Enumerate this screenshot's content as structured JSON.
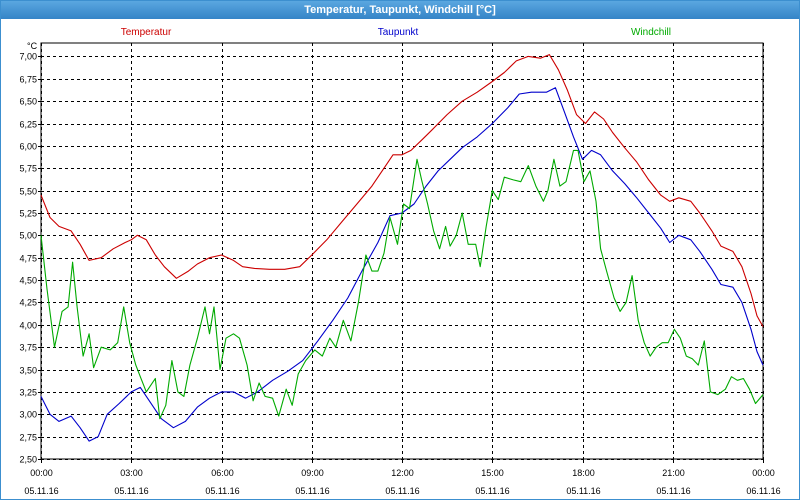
{
  "window": {
    "title": "Temperatur, Taupunkt, Windchill [°C]"
  },
  "chart_data": {
    "type": "line",
    "title": "Temperatur, Taupunkt, Windchill [°C]",
    "ylabel": "°C",
    "ylim": [
      2.5,
      7.15
    ],
    "xlim": [
      0,
      24
    ],
    "grid": true,
    "legend": "top",
    "y_ticks": [
      "2,50",
      "2,75",
      "3,00",
      "3,25",
      "3,50",
      "3,75",
      "4,00",
      "4,25",
      "4,50",
      "4,75",
      "5,00",
      "5,25",
      "5,50",
      "5,75",
      "6,00",
      "6,25",
      "6,50",
      "6,75",
      "7,00"
    ],
    "x_ticks": [
      {
        "time": "00:00",
        "date": "05.11.16",
        "pos": 0
      },
      {
        "time": "03:00",
        "date": "05.11.16",
        "pos": 3
      },
      {
        "time": "06:00",
        "date": "05.11.16",
        "pos": 6
      },
      {
        "time": "09:00",
        "date": "05.11.16",
        "pos": 9
      },
      {
        "time": "12:00",
        "date": "05.11.16",
        "pos": 12
      },
      {
        "time": "15:00",
        "date": "05.11.16",
        "pos": 15
      },
      {
        "time": "18:00",
        "date": "05.11.16",
        "pos": 18
      },
      {
        "time": "21:00",
        "date": "05.11.16",
        "pos": 21
      },
      {
        "time": "00:00",
        "date": "06.11.16",
        "pos": 24
      }
    ],
    "series": [
      {
        "name": "Temperatur",
        "color": "#cc0000",
        "points": [
          [
            0,
            5.45
          ],
          [
            0.3,
            5.2
          ],
          [
            0.6,
            5.1
          ],
          [
            1.0,
            5.05
          ],
          [
            1.3,
            4.9
          ],
          [
            1.6,
            4.72
          ],
          [
            2.0,
            4.75
          ],
          [
            2.4,
            4.85
          ],
          [
            2.8,
            4.92
          ],
          [
            3.0,
            4.95
          ],
          [
            3.2,
            5.0
          ],
          [
            3.5,
            4.95
          ],
          [
            3.8,
            4.78
          ],
          [
            4.1,
            4.65
          ],
          [
            4.5,
            4.52
          ],
          [
            4.9,
            4.6
          ],
          [
            5.2,
            4.68
          ],
          [
            5.6,
            4.75
          ],
          [
            6.0,
            4.78
          ],
          [
            6.4,
            4.72
          ],
          [
            6.7,
            4.65
          ],
          [
            7.1,
            4.63
          ],
          [
            7.6,
            4.62
          ],
          [
            8.1,
            4.62
          ],
          [
            8.6,
            4.65
          ],
          [
            9.0,
            4.78
          ],
          [
            9.5,
            4.95
          ],
          [
            10.0,
            5.15
          ],
          [
            10.5,
            5.35
          ],
          [
            11.0,
            5.55
          ],
          [
            11.4,
            5.75
          ],
          [
            11.7,
            5.9
          ],
          [
            12.0,
            5.9
          ],
          [
            12.3,
            5.95
          ],
          [
            12.7,
            6.08
          ],
          [
            13.0,
            6.18
          ],
          [
            13.5,
            6.35
          ],
          [
            14.0,
            6.5
          ],
          [
            14.5,
            6.6
          ],
          [
            15.0,
            6.72
          ],
          [
            15.4,
            6.82
          ],
          [
            15.8,
            6.95
          ],
          [
            16.2,
            7.0
          ],
          [
            16.6,
            6.98
          ],
          [
            16.9,
            7.02
          ],
          [
            17.2,
            6.85
          ],
          [
            17.5,
            6.62
          ],
          [
            17.8,
            6.35
          ],
          [
            18.1,
            6.25
          ],
          [
            18.4,
            6.38
          ],
          [
            18.7,
            6.3
          ],
          [
            19.0,
            6.15
          ],
          [
            19.4,
            5.98
          ],
          [
            19.8,
            5.82
          ],
          [
            20.2,
            5.62
          ],
          [
            20.6,
            5.45
          ],
          [
            20.9,
            5.38
          ],
          [
            21.2,
            5.42
          ],
          [
            21.6,
            5.38
          ],
          [
            21.9,
            5.25
          ],
          [
            22.3,
            5.05
          ],
          [
            22.6,
            4.88
          ],
          [
            23.0,
            4.82
          ],
          [
            23.3,
            4.65
          ],
          [
            23.6,
            4.35
          ],
          [
            23.8,
            4.1
          ],
          [
            24.0,
            3.98
          ]
        ]
      },
      {
        "name": "Taupunkt",
        "color": "#0000cc",
        "points": [
          [
            0,
            3.2
          ],
          [
            0.3,
            3.0
          ],
          [
            0.6,
            2.92
          ],
          [
            1.0,
            2.98
          ],
          [
            1.3,
            2.85
          ],
          [
            1.6,
            2.7
          ],
          [
            1.9,
            2.75
          ],
          [
            2.2,
            3.0
          ],
          [
            2.6,
            3.12
          ],
          [
            3.0,
            3.25
          ],
          [
            3.3,
            3.3
          ],
          [
            3.6,
            3.15
          ],
          [
            4.0,
            2.95
          ],
          [
            4.4,
            2.85
          ],
          [
            4.8,
            2.92
          ],
          [
            5.2,
            3.08
          ],
          [
            5.6,
            3.18
          ],
          [
            6.0,
            3.25
          ],
          [
            6.4,
            3.25
          ],
          [
            6.8,
            3.18
          ],
          [
            7.2,
            3.25
          ],
          [
            7.7,
            3.38
          ],
          [
            8.2,
            3.48
          ],
          [
            8.7,
            3.6
          ],
          [
            9.2,
            3.82
          ],
          [
            9.7,
            4.05
          ],
          [
            10.2,
            4.3
          ],
          [
            10.7,
            4.62
          ],
          [
            11.2,
            4.92
          ],
          [
            11.6,
            5.22
          ],
          [
            12.0,
            5.25
          ],
          [
            12.4,
            5.35
          ],
          [
            12.8,
            5.55
          ],
          [
            13.2,
            5.72
          ],
          [
            13.6,
            5.85
          ],
          [
            14.0,
            5.98
          ],
          [
            14.5,
            6.1
          ],
          [
            15.0,
            6.25
          ],
          [
            15.5,
            6.42
          ],
          [
            15.9,
            6.58
          ],
          [
            16.3,
            6.6
          ],
          [
            16.8,
            6.6
          ],
          [
            17.1,
            6.65
          ],
          [
            17.4,
            6.38
          ],
          [
            17.7,
            6.1
          ],
          [
            18.0,
            5.85
          ],
          [
            18.3,
            5.95
          ],
          [
            18.6,
            5.9
          ],
          [
            19.0,
            5.72
          ],
          [
            19.4,
            5.58
          ],
          [
            19.8,
            5.42
          ],
          [
            20.2,
            5.25
          ],
          [
            20.6,
            5.08
          ],
          [
            20.9,
            4.92
          ],
          [
            21.2,
            5.0
          ],
          [
            21.6,
            4.95
          ],
          [
            21.9,
            4.82
          ],
          [
            22.3,
            4.62
          ],
          [
            22.6,
            4.45
          ],
          [
            23.0,
            4.42
          ],
          [
            23.3,
            4.25
          ],
          [
            23.6,
            3.95
          ],
          [
            23.8,
            3.7
          ],
          [
            24.0,
            3.55
          ]
        ]
      },
      {
        "name": "Windchill",
        "color": "#00aa00",
        "points": [
          [
            0,
            5.0
          ],
          [
            0.2,
            4.4
          ],
          [
            0.45,
            3.75
          ],
          [
            0.7,
            4.15
          ],
          [
            0.9,
            4.2
          ],
          [
            1.05,
            4.7
          ],
          [
            1.2,
            4.2
          ],
          [
            1.4,
            3.65
          ],
          [
            1.6,
            3.9
          ],
          [
            1.75,
            3.52
          ],
          [
            2.0,
            3.75
          ],
          [
            2.3,
            3.72
          ],
          [
            2.55,
            3.8
          ],
          [
            2.75,
            4.2
          ],
          [
            2.95,
            3.8
          ],
          [
            3.15,
            3.55
          ],
          [
            3.3,
            3.42
          ],
          [
            3.5,
            3.25
          ],
          [
            3.8,
            3.4
          ],
          [
            3.95,
            2.95
          ],
          [
            4.15,
            3.1
          ],
          [
            4.35,
            3.6
          ],
          [
            4.55,
            3.25
          ],
          [
            4.75,
            3.2
          ],
          [
            4.95,
            3.55
          ],
          [
            5.2,
            3.85
          ],
          [
            5.45,
            4.2
          ],
          [
            5.6,
            3.9
          ],
          [
            5.75,
            4.2
          ],
          [
            5.95,
            3.5
          ],
          [
            6.15,
            3.85
          ],
          [
            6.4,
            3.9
          ],
          [
            6.6,
            3.85
          ],
          [
            6.85,
            3.55
          ],
          [
            7.05,
            3.15
          ],
          [
            7.25,
            3.35
          ],
          [
            7.45,
            3.2
          ],
          [
            7.7,
            3.18
          ],
          [
            7.9,
            2.98
          ],
          [
            8.15,
            3.28
          ],
          [
            8.35,
            3.1
          ],
          [
            8.55,
            3.45
          ],
          [
            8.8,
            3.6
          ],
          [
            9.1,
            3.72
          ],
          [
            9.35,
            3.65
          ],
          [
            9.6,
            3.85
          ],
          [
            9.8,
            3.75
          ],
          [
            10.05,
            4.05
          ],
          [
            10.3,
            3.82
          ],
          [
            10.55,
            4.25
          ],
          [
            10.8,
            4.78
          ],
          [
            11.0,
            4.6
          ],
          [
            11.2,
            4.6
          ],
          [
            11.4,
            4.8
          ],
          [
            11.6,
            5.2
          ],
          [
            11.85,
            4.9
          ],
          [
            12.05,
            5.35
          ],
          [
            12.25,
            5.3
          ],
          [
            12.5,
            5.85
          ],
          [
            12.65,
            5.62
          ],
          [
            12.85,
            5.35
          ],
          [
            13.05,
            5.05
          ],
          [
            13.25,
            4.85
          ],
          [
            13.45,
            5.1
          ],
          [
            13.6,
            4.88
          ],
          [
            13.8,
            5.0
          ],
          [
            14.0,
            5.25
          ],
          [
            14.2,
            4.9
          ],
          [
            14.45,
            4.9
          ],
          [
            14.6,
            4.65
          ],
          [
            14.8,
            5.1
          ],
          [
            15.0,
            5.5
          ],
          [
            15.2,
            5.4
          ],
          [
            15.4,
            5.65
          ],
          [
            15.7,
            5.62
          ],
          [
            15.95,
            5.6
          ],
          [
            16.2,
            5.78
          ],
          [
            16.45,
            5.55
          ],
          [
            16.7,
            5.38
          ],
          [
            16.85,
            5.5
          ],
          [
            17.05,
            5.85
          ],
          [
            17.25,
            5.55
          ],
          [
            17.45,
            5.6
          ],
          [
            17.7,
            5.95
          ],
          [
            17.85,
            5.95
          ],
          [
            18.05,
            5.6
          ],
          [
            18.25,
            5.72
          ],
          [
            18.45,
            5.38
          ],
          [
            18.6,
            4.85
          ],
          [
            18.8,
            4.6
          ],
          [
            19.05,
            4.3
          ],
          [
            19.25,
            4.15
          ],
          [
            19.45,
            4.25
          ],
          [
            19.65,
            4.55
          ],
          [
            19.85,
            4.05
          ],
          [
            20.05,
            3.8
          ],
          [
            20.25,
            3.65
          ],
          [
            20.45,
            3.75
          ],
          [
            20.65,
            3.8
          ],
          [
            20.85,
            3.8
          ],
          [
            21.05,
            3.95
          ],
          [
            21.25,
            3.85
          ],
          [
            21.45,
            3.65
          ],
          [
            21.65,
            3.62
          ],
          [
            21.85,
            3.55
          ],
          [
            22.05,
            3.82
          ],
          [
            22.25,
            3.25
          ],
          [
            22.5,
            3.22
          ],
          [
            22.75,
            3.28
          ],
          [
            22.95,
            3.42
          ],
          [
            23.15,
            3.38
          ],
          [
            23.35,
            3.4
          ],
          [
            23.55,
            3.28
          ],
          [
            23.75,
            3.12
          ],
          [
            24.0,
            3.22
          ]
        ]
      }
    ]
  }
}
